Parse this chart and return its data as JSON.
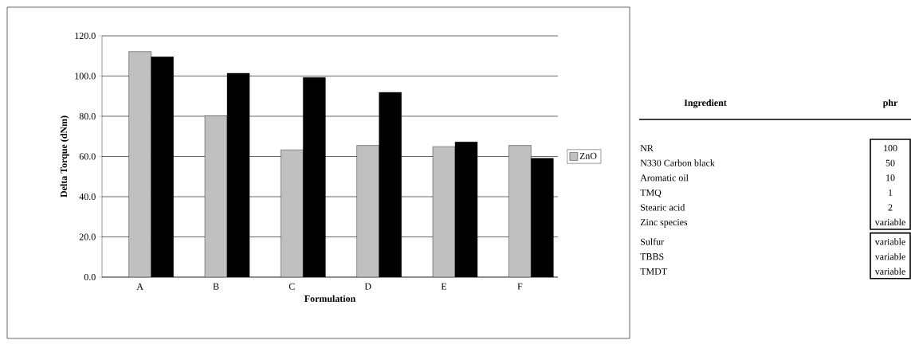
{
  "chart_data": [
    {
      "type": "bar",
      "xlabel": "Formulation",
      "ylabel": "Delta Torque (dNm)",
      "categories": [
        "A",
        "B",
        "C",
        "D",
        "E",
        "F"
      ],
      "series": [
        {
          "name": "ZnO",
          "color": "#c0c0c0",
          "values": [
            112.2,
            80.2,
            63.3,
            65.5,
            64.9,
            65.5
          ]
        },
        {
          "color": "#000000",
          "values": [
            109.6,
            101.4,
            99.3,
            91.9,
            67.2,
            59.1
          ]
        }
      ],
      "ylim": [
        0,
        120
      ],
      "yticks": [
        {
          "value": 0,
          "label": "0.0"
        },
        {
          "value": 20,
          "label": "20.0"
        },
        {
          "value": 40,
          "label": "40.0"
        },
        {
          "value": 60,
          "label": "60.0"
        },
        {
          "value": 80,
          "label": "80.0"
        },
        {
          "value": 100,
          "label": "100.0"
        },
        {
          "value": 120,
          "label": "120.0"
        }
      ],
      "grid": "y",
      "legend": "right"
    },
    {
      "type": "other",
      "annotations": [
        "Ingredient",
        "phr",
        "NR",
        "100",
        "N330 Carbon black",
        "50",
        "Aromatic oil",
        "10",
        "TMQ",
        "1",
        "Stearic acid",
        "2",
        "Zinc species",
        "variable",
        "Sulfur",
        "variable",
        "TBBS",
        "variable",
        "TMDT",
        "variable"
      ]
    }
  ]
}
